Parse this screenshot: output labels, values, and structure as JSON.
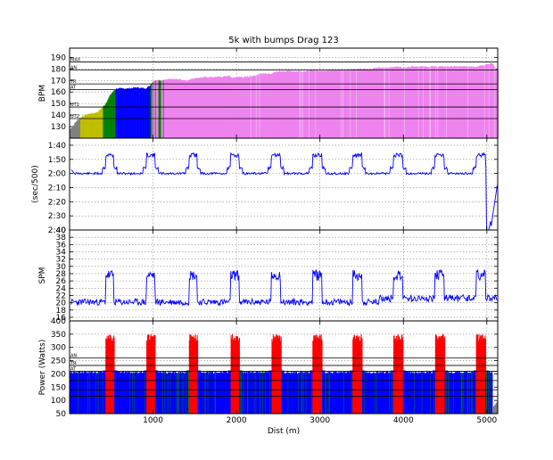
{
  "chart_data": {
    "type": "multi-panel",
    "title": "5k with bumps Drag 123",
    "xlabel": "Dist (m)",
    "xlim": [
      0,
      5130
    ],
    "xticks": [
      1000,
      2000,
      3000,
      4000,
      5000
    ],
    "intervals": [
      {
        "start": 430,
        "end": 530
      },
      {
        "start": 920,
        "end": 1020
      },
      {
        "start": 1430,
        "end": 1530
      },
      {
        "start": 1930,
        "end": 2030
      },
      {
        "start": 2420,
        "end": 2530
      },
      {
        "start": 2910,
        "end": 3020
      },
      {
        "start": 3390,
        "end": 3500
      },
      {
        "start": 3880,
        "end": 3990
      },
      {
        "start": 4380,
        "end": 4490
      },
      {
        "start": 4870,
        "end": 4980
      }
    ],
    "panels": [
      {
        "id": "hr",
        "ylabel": "BPM",
        "ylim": [
          120,
          198
        ],
        "yticks": [
          130,
          140,
          150,
          160,
          170,
          180,
          190
        ],
        "levels": [
          {
            "label": "MAX",
            "value": 186
          },
          {
            "label": "AN",
            "value": 179
          },
          {
            "label": "TR",
            "value": 167
          },
          {
            "label": "AT",
            "value": 162
          },
          {
            "label": "UT1",
            "value": 147
          },
          {
            "label": "UT2",
            "value": 137
          }
        ],
        "zone_colors": {
          "rest": "#808080",
          "ut2": "#bfbf00",
          "ut1": "#008000",
          "at": "#0000ff",
          "tr": "#ee82ee"
        },
        "hr_points": [
          [
            0,
            128
          ],
          [
            30,
            130
          ],
          [
            80,
            135
          ],
          [
            150,
            139
          ],
          [
            220,
            141
          ],
          [
            300,
            142
          ],
          [
            340,
            143
          ],
          [
            380,
            146
          ],
          [
            420,
            149
          ],
          [
            450,
            153
          ],
          [
            480,
            157
          ],
          [
            510,
            160
          ],
          [
            540,
            162
          ],
          [
            560,
            163
          ],
          [
            620,
            163
          ],
          [
            700,
            163
          ],
          [
            800,
            164
          ],
          [
            900,
            163
          ],
          [
            950,
            165
          ],
          [
            1000,
            170
          ],
          [
            1100,
            170
          ],
          [
            1200,
            171
          ],
          [
            1300,
            171
          ],
          [
            1400,
            170
          ],
          [
            1500,
            172
          ],
          [
            1600,
            173
          ],
          [
            1700,
            173
          ],
          [
            1800,
            173
          ],
          [
            1900,
            174
          ],
          [
            1950,
            172
          ],
          [
            2000,
            173
          ],
          [
            2100,
            173
          ],
          [
            2200,
            174
          ],
          [
            2300,
            176
          ],
          [
            2400,
            176
          ],
          [
            2500,
            178
          ],
          [
            2600,
            178
          ],
          [
            2700,
            178
          ],
          [
            2800,
            178
          ],
          [
            2900,
            179
          ],
          [
            3000,
            178
          ],
          [
            3100,
            179
          ],
          [
            3200,
            179
          ],
          [
            3300,
            179
          ],
          [
            3400,
            180
          ],
          [
            3500,
            180
          ],
          [
            3600,
            180
          ],
          [
            3700,
            181
          ],
          [
            3800,
            181
          ],
          [
            3900,
            182
          ],
          [
            4000,
            181
          ],
          [
            4100,
            182
          ],
          [
            4200,
            182
          ],
          [
            4300,
            182
          ],
          [
            4400,
            182
          ],
          [
            4500,
            182
          ],
          [
            4600,
            182
          ],
          [
            4700,
            182
          ],
          [
            4800,
            182
          ],
          [
            4900,
            182
          ],
          [
            5000,
            184
          ],
          [
            5060,
            185
          ],
          [
            5100,
            180
          ],
          [
            5130,
            178
          ]
        ]
      },
      {
        "id": "pace",
        "ylabel": "(sec/500)",
        "ylim": [
          "1:35",
          "2:40"
        ],
        "yticks": [
          "1:40",
          "1:50",
          "2:00",
          "2:10",
          "2:20",
          "2:30",
          "2:40"
        ],
        "base_pace": "2:00",
        "bump_pace": "1:47"
      },
      {
        "id": "spm",
        "ylabel": "SPM",
        "ylim": [
          15,
          40
        ],
        "yticks": [
          16,
          18,
          20,
          22,
          24,
          26,
          28,
          30,
          32,
          34,
          36,
          38,
          40
        ],
        "base_spm": 20,
        "bump_spm": 27
      },
      {
        "id": "power",
        "ylabel": "Power (Watts)",
        "ylim": [
          50,
          400
        ],
        "yticks": [
          50,
          100,
          150,
          200,
          250,
          300,
          350,
          400
        ],
        "levels": [
          {
            "label": "AN",
            "value": 260
          },
          {
            "label": "TR",
            "value": 232
          },
          {
            "label": "AT",
            "value": 210
          },
          {
            "label": "",
            "value": 175
          },
          {
            "label": "",
            "value": 140
          },
          {
            "label": "",
            "value": 115
          }
        ],
        "base_power": 205,
        "bump_power": 330,
        "colors": {
          "base": "#0000ff",
          "light": "#008000",
          "bump": "#ff0000",
          "rest": "#808080"
        }
      }
    ]
  }
}
